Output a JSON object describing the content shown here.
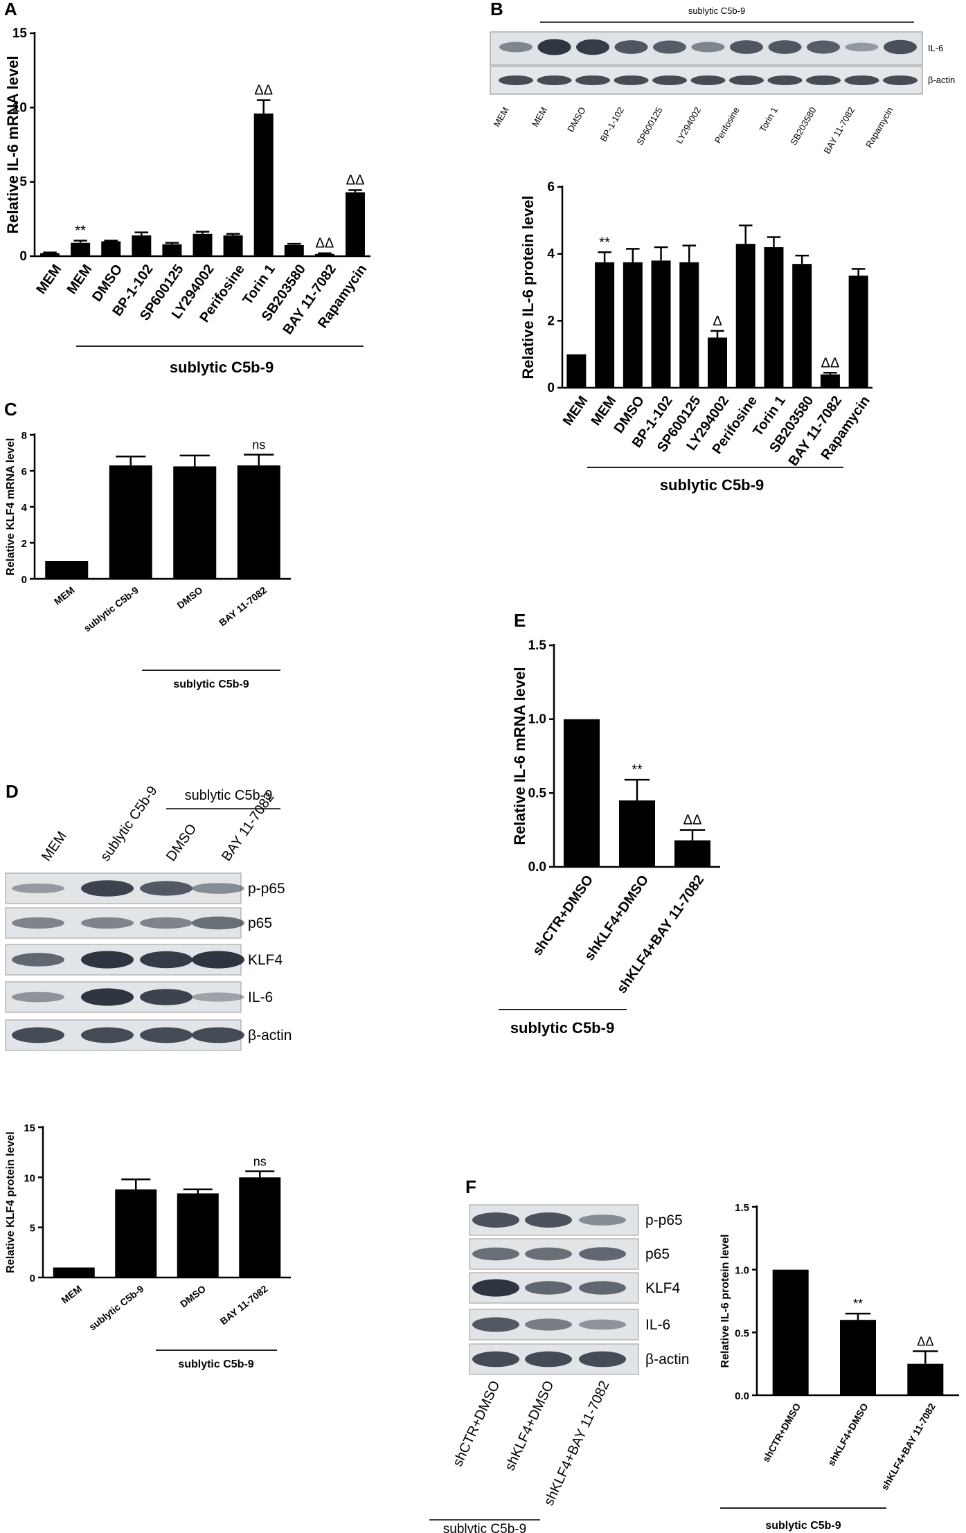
{
  "panels": {
    "A": {
      "letter": "A"
    },
    "B": {
      "letter": "B",
      "blot_group": "sublytic C5b-9",
      "lanes": [
        "MEM",
        "MEM",
        "DMSO",
        "BP-1-102",
        "SP600125",
        "LY294002",
        "Perifosine",
        "Torin 1",
        "SB203580",
        "BAY 11-7082",
        "Rapamycin"
      ],
      "rows": [
        "IL-6",
        "β-actin"
      ]
    },
    "C": {
      "letter": "C"
    },
    "D": {
      "letter": "D",
      "blot_group": "sublytic C5b-9",
      "lanes": [
        "MEM",
        "sublytic C5b-9",
        "DMSO",
        "BAY 11-7082"
      ],
      "rows": [
        "p-p65",
        "p65",
        "KLF4",
        "IL-6",
        "β-actin"
      ]
    },
    "E": {
      "letter": "E"
    },
    "F": {
      "letter": "F",
      "blot_group": "sublytic C5b-9",
      "lanes": [
        "shCTR+DMSO",
        "shKLF4+DMSO",
        "shKLF4+BAY 11-7082"
      ],
      "rows": [
        "p-p65",
        "p65",
        "KLF4",
        "IL-6",
        "β-actin"
      ]
    }
  },
  "chart_data": [
    {
      "id": "A",
      "type": "bar",
      "ylabel": "Relative IL-6  mRNA level",
      "ylim": [
        0,
        15
      ],
      "yticks": [
        0,
        5,
        10,
        15
      ],
      "categories": [
        "MEM",
        "MEM",
        "DMSO",
        "BP-1-102",
        "SP600125",
        "LY294002",
        "Perifosine",
        "Torin 1",
        "SB203580",
        "BAY 11-7082",
        "Rapamycin"
      ],
      "values": [
        0.2,
        0.9,
        1.0,
        1.4,
        0.8,
        1.5,
        1.4,
        9.6,
        0.75,
        0.15,
        4.3
      ],
      "errors": [
        0.05,
        0.15,
        0.05,
        0.2,
        0.1,
        0.15,
        0.1,
        0.9,
        0.08,
        0.05,
        0.15
      ],
      "annotations": [
        "",
        "**",
        "",
        "",
        "",
        "",
        "",
        "ΔΔ",
        "",
        "ΔΔ",
        "ΔΔ"
      ],
      "group_label": "sublytic C5b-9"
    },
    {
      "id": "B",
      "type": "bar",
      "ylabel": "Relative IL-6  protein level",
      "ylim": [
        0,
        6
      ],
      "yticks": [
        0,
        2,
        4,
        6
      ],
      "categories": [
        "MEM",
        "MEM",
        "DMSO",
        "BP-1-102",
        "SP600125",
        "LY294002",
        "Perifosine",
        "Torin 1",
        "SB203580",
        "BAY 11-7082",
        "Rapamycin"
      ],
      "values": [
        1.0,
        3.75,
        3.75,
        3.8,
        3.75,
        1.5,
        4.3,
        4.2,
        3.7,
        0.4,
        3.35
      ],
      "errors": [
        0.0,
        0.3,
        0.4,
        0.4,
        0.5,
        0.2,
        0.55,
        0.3,
        0.25,
        0.05,
        0.2
      ],
      "annotations": [
        "",
        "**",
        "",
        "",
        "",
        "Δ",
        "",
        "",
        "",
        "ΔΔ",
        ""
      ],
      "group_label": "sublytic C5b-9"
    },
    {
      "id": "C",
      "type": "bar",
      "ylabel": "Relative KLF4  mRNA level",
      "ylim": [
        0,
        8
      ],
      "yticks": [
        0,
        2,
        4,
        6,
        8
      ],
      "categories": [
        "MEM",
        "sublytic C5b-9",
        "DMSO",
        "BAY 11-7082"
      ],
      "values": [
        1.0,
        6.3,
        6.25,
        6.3
      ],
      "errors": [
        0.0,
        0.5,
        0.6,
        0.6
      ],
      "annotations": [
        "",
        "",
        "",
        "ns"
      ],
      "group_label": "sublytic C5b-9"
    },
    {
      "id": "D",
      "type": "bar",
      "ylabel": "Relative KLF4  protein level",
      "ylim": [
        0,
        15
      ],
      "yticks": [
        0,
        5,
        10,
        15
      ],
      "categories": [
        "MEM",
        "sublytic C5b-9",
        "DMSO",
        "BAY 11-7082"
      ],
      "values": [
        1.0,
        8.8,
        8.4,
        10.0
      ],
      "errors": [
        0.0,
        1.0,
        0.4,
        0.6
      ],
      "annotations": [
        "",
        "",
        "",
        "ns"
      ],
      "group_label": "sublytic C5b-9"
    },
    {
      "id": "E",
      "type": "bar",
      "ylabel": "Relative IL-6 mRNA level",
      "ylim": [
        0,
        1.5
      ],
      "yticks": [
        "0.0",
        "0.5",
        "1.0",
        "1.5"
      ],
      "categories": [
        "shCTR+DMSO",
        "shKLF4+DMSO",
        "shKLF4+BAY 11-7082"
      ],
      "values": [
        1.0,
        0.45,
        0.18
      ],
      "errors": [
        0.0,
        0.14,
        0.07
      ],
      "annotations": [
        "",
        "**",
        "ΔΔ"
      ],
      "group_label": "sublytic C5b-9"
    },
    {
      "id": "F",
      "type": "bar",
      "ylabel": "Relative IL-6 protein level",
      "ylim": [
        0,
        1.5
      ],
      "yticks": [
        "0.0",
        "0.5",
        "1.0",
        "1.5"
      ],
      "categories": [
        "shCTR+DMSO",
        "shKLF4+DMSO",
        "shKLF4+BAY 11-7082"
      ],
      "values": [
        1.0,
        0.6,
        0.25
      ],
      "errors": [
        0.0,
        0.05,
        0.1
      ],
      "annotations": [
        "",
        "**",
        "ΔΔ"
      ],
      "group_label": "sublytic C5b-9"
    }
  ]
}
